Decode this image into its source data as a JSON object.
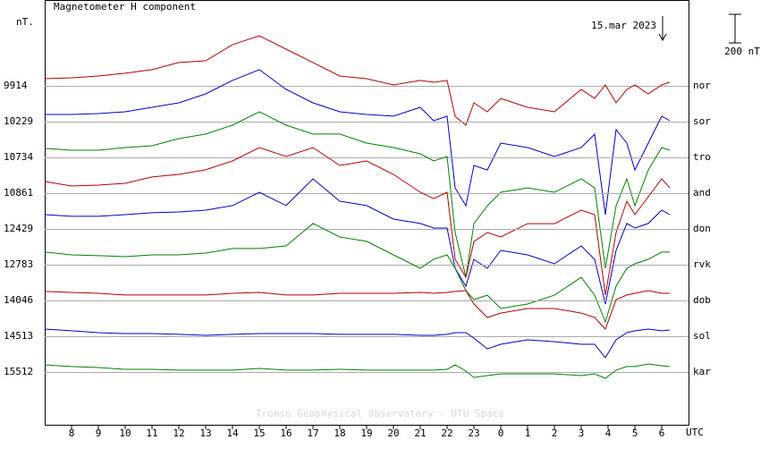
{
  "chart_data": {
    "type": "line",
    "title": "Magnetometer H component",
    "y_unit": "nT.",
    "x_label": "UTC",
    "annotation": "15.mar 2023",
    "scale_bar": {
      "value": 200,
      "label": "200 nT"
    },
    "credit": "Tromso Geophysical Observatory - DTU Space",
    "xlim": [
      7,
      31
    ],
    "xticks": [
      8,
      9,
      10,
      11,
      12,
      13,
      14,
      15,
      16,
      17,
      18,
      19,
      20,
      21,
      22,
      23,
      {
        "value": 24,
        "label": "0"
      },
      {
        "value": 25,
        "label": "1"
      },
      {
        "value": 26,
        "label": "2"
      },
      {
        "value": 27,
        "label": "3"
      },
      {
        "value": 28,
        "label": "4"
      },
      {
        "value": 29,
        "label": "5"
      },
      {
        "value": 30,
        "label": "6"
      }
    ],
    "x": [
      7,
      8,
      9,
      10,
      11,
      12,
      13,
      14,
      15,
      16,
      17,
      18,
      19,
      20,
      21,
      21.5,
      22,
      22.3,
      22.7,
      23,
      23.5,
      24,
      25,
      26,
      27,
      27.5,
      27.9,
      28.3,
      28.7,
      29,
      29.5,
      30,
      30.3
    ],
    "series": [
      {
        "name": "nor",
        "baseline": 9914,
        "color": "#b40000",
        "values": [
          50,
          56,
          69,
          88,
          113,
          163,
          175,
          288,
          350,
          256,
          163,
          69,
          50,
          6,
          38,
          25,
          38,
          -213,
          -275,
          -119,
          -181,
          -88,
          -150,
          -181,
          -25,
          -88,
          6,
          -119,
          -25,
          6,
          -56,
          6,
          25
        ]
      },
      {
        "name": "sor",
        "baseline": 10229,
        "color": "#0000c8",
        "values": [
          50,
          50,
          56,
          69,
          100,
          131,
          194,
          288,
          363,
          225,
          131,
          69,
          50,
          38,
          100,
          6,
          38,
          -463,
          -588,
          -306,
          -338,
          -150,
          -181,
          -244,
          -181,
          -88,
          -650,
          -56,
          -150,
          -338,
          -150,
          38,
          6
        ]
      },
      {
        "name": "tro",
        "baseline": 10734,
        "color": "#008000",
        "values": [
          63,
          50,
          50,
          69,
          81,
          131,
          163,
          225,
          319,
          225,
          163,
          163,
          100,
          69,
          25,
          -25,
          6,
          -525,
          -838,
          -463,
          -338,
          -244,
          -213,
          -244,
          -150,
          -213,
          -775,
          -338,
          -150,
          -338,
          -88,
          69,
          50
        ]
      },
      {
        "name": "and",
        "baseline": 10861,
        "color": "#b40000",
        "values": [
          81,
          50,
          56,
          69,
          113,
          131,
          163,
          225,
          319,
          256,
          319,
          194,
          225,
          131,
          6,
          -38,
          6,
          -463,
          -588,
          -338,
          -275,
          -306,
          -213,
          -213,
          -119,
          -150,
          -713,
          -275,
          -56,
          -150,
          -25,
          100,
          38
        ]
      },
      {
        "name": "don",
        "baseline": 12429,
        "color": "#0000c8",
        "values": [
          100,
          88,
          88,
          100,
          113,
          119,
          131,
          163,
          256,
          163,
          350,
          194,
          163,
          69,
          38,
          6,
          6,
          -275,
          -400,
          -213,
          -275,
          -150,
          -181,
          -244,
          -119,
          -213,
          -525,
          -150,
          38,
          6,
          38,
          131,
          100
        ]
      },
      {
        "name": "rvk",
        "baseline": 12783,
        "color": "#008000",
        "values": [
          88,
          69,
          63,
          56,
          69,
          69,
          81,
          113,
          113,
          131,
          288,
          194,
          163,
          69,
          -25,
          38,
          69,
          -25,
          -181,
          -244,
          -213,
          -306,
          -275,
          -213,
          -88,
          -213,
          -400,
          -150,
          -25,
          6,
          38,
          88,
          88
        ]
      },
      {
        "name": "dob",
        "baseline": 14046,
        "color": "#b40000",
        "values": [
          63,
          56,
          50,
          38,
          38,
          38,
          38,
          50,
          56,
          38,
          38,
          50,
          50,
          50,
          56,
          50,
          56,
          63,
          69,
          -25,
          -119,
          -88,
          -56,
          -56,
          -88,
          -119,
          -200,
          6,
          38,
          50,
          69,
          50,
          50
        ]
      },
      {
        "name": "sol",
        "baseline": 14513,
        "color": "#0000c8",
        "values": [
          50,
          38,
          25,
          19,
          19,
          13,
          6,
          13,
          19,
          19,
          19,
          13,
          13,
          13,
          6,
          6,
          13,
          25,
          25,
          -13,
          -88,
          -56,
          -25,
          -38,
          -56,
          -56,
          -150,
          -25,
          25,
          38,
          50,
          38,
          44
        ]
      },
      {
        "name": "kar",
        "baseline": 15512,
        "color": "#008000",
        "values": [
          50,
          38,
          31,
          19,
          19,
          13,
          13,
          13,
          25,
          13,
          13,
          19,
          13,
          13,
          13,
          13,
          19,
          50,
          6,
          -38,
          -25,
          -13,
          -13,
          -13,
          -25,
          -13,
          -44,
          13,
          38,
          38,
          56,
          44,
          38
        ]
      }
    ]
  }
}
